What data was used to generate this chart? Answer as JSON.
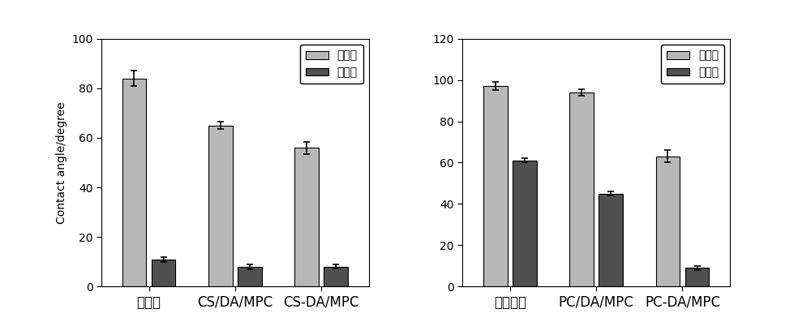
{
  "left_chart": {
    "categories": [
      "壳聚糖",
      "CS/DA/MPC",
      "CS-DA/MPC"
    ],
    "advancing_values": [
      84,
      65,
      56
    ],
    "receding_values": [
      11,
      8,
      8
    ],
    "advancing_errors": [
      3,
      1.5,
      2.5
    ],
    "receding_errors": [
      1,
      1,
      0.8
    ],
    "ylabel": "Contact angle/degree",
    "ylim": [
      0,
      100
    ],
    "yticks": [
      0,
      20,
      40,
      60,
      80,
      100
    ]
  },
  "right_chart": {
    "categories": [
      "聚碳酸酯",
      "PC/DA/MPC",
      "PC-DA/MPC"
    ],
    "advancing_values": [
      97,
      94,
      63
    ],
    "receding_values": [
      61,
      45,
      9
    ],
    "advancing_errors": [
      2,
      1.5,
      3
    ],
    "receding_errors": [
      1,
      1,
      1
    ],
    "ylim": [
      0,
      120
    ],
    "yticks": [
      0,
      20,
      40,
      60,
      80,
      100,
      120
    ]
  },
  "legend_labels": [
    "前进角",
    "后退角"
  ],
  "bar_color_advancing": "#b8b8b8",
  "bar_color_receding": "#505050",
  "bar_width": 0.28,
  "figure_bg": "#ffffff",
  "axes_bg": "#ffffff",
  "font_size_tick": 10,
  "font_size_label": 10,
  "font_size_legend": 10,
  "font_size_xticklabel": 12
}
